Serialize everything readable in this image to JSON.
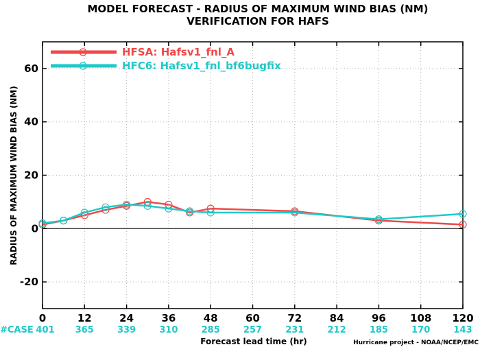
{
  "chart_data": {
    "type": "line",
    "title_line1": "MODEL FORECAST - RADIUS OF MAXIMUM WIND BIAS (NM)",
    "title_line2": "VERIFICATION FOR HAFS",
    "xlabel": "Forecast lead time (hr)",
    "ylabel": "RADIUS OF MAXIMUM WIND BIAS (NM)",
    "xlim": [
      0,
      120
    ],
    "ylim": [
      -30,
      70
    ],
    "x_ticks": [
      0,
      12,
      24,
      36,
      48,
      60,
      72,
      84,
      96,
      108,
      120
    ],
    "x_tick_labels": [
      "0",
      "12",
      "24",
      "36",
      "48",
      "60",
      "72",
      "84",
      "96",
      "108",
      "120"
    ],
    "y_ticks": [
      -20,
      0,
      20,
      40,
      60
    ],
    "y_tick_labels": [
      "-20",
      "0",
      "20",
      "40",
      "60"
    ],
    "grid": true,
    "legend_position": "top-left",
    "case_label": "#CASE",
    "case_x": [
      0,
      12,
      24,
      36,
      48,
      60,
      72,
      84,
      96,
      108,
      120
    ],
    "case_counts": [
      "401",
      "365",
      "339",
      "310",
      "285",
      "257",
      "231",
      "212",
      "185",
      "170",
      "143"
    ],
    "credit": "Hurricane project - NOAA/NCEP/EMC",
    "series": [
      {
        "name": "HFSA: Hafsv1_fnl_A",
        "color": "#f04848",
        "x": [
          0,
          6,
          12,
          18,
          24,
          30,
          36,
          42,
          48,
          72,
          96,
          120
        ],
        "y": [
          1.5,
          3.0,
          5.0,
          7.0,
          8.5,
          10.0,
          9.0,
          6.0,
          7.5,
          6.5,
          3.0,
          1.5
        ]
      },
      {
        "name": "HFC6: Hafsv1_fnl_bf6bugfix",
        "color": "#20c8c8",
        "x": [
          0,
          6,
          12,
          18,
          24,
          30,
          36,
          42,
          48,
          72,
          96,
          120
        ],
        "y": [
          2.0,
          3.0,
          6.0,
          8.0,
          9.0,
          8.5,
          7.5,
          6.5,
          6.0,
          6.0,
          3.5,
          5.5
        ]
      }
    ]
  }
}
